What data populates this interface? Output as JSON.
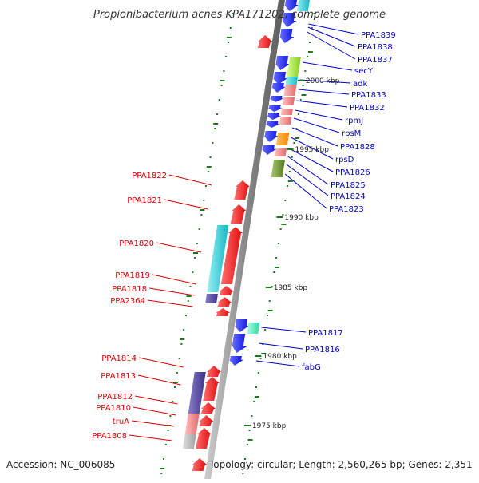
{
  "title": "Propionibacterium acnes KPA171202, complete genome",
  "footer": {
    "accession": "Accession: NC_006085",
    "topology": "Topology: circular; Length: 2,560,265 bp; Genes: 2,351"
  },
  "colors": {
    "forward_label": "#0000cc",
    "reverse_label": "#dd0000",
    "forward_gene": "#0a12e8",
    "reverse_gene": "#ee0f0f",
    "backbone": "#9a9a9a",
    "tick": "#1a7a1a"
  },
  "scale_labels": [
    "2000 kbp",
    "1995 kbp",
    "1990 kbp",
    "1985 kbp",
    "1980 kbp",
    "1975 kbp"
  ],
  "forward_genes": [
    "PPA1839",
    "PPA1838",
    "PPA1837",
    "secY",
    "adk",
    "PPA1833",
    "PPA1832",
    "rpmJ",
    "rpsM",
    "PPA1828",
    "rpsD",
    "PPA1826",
    "PPA1825",
    "PPA1824",
    "PPA1823",
    "PPA1817",
    "PPA1816",
    "fabG"
  ],
  "reverse_genes": [
    "PPA1822",
    "PPA1821",
    "PPA1820",
    "PPA1819",
    "PPA1818",
    "PPA2364",
    "PPA1814",
    "PPA1813",
    "PPA1812",
    "PPA1810",
    "truA",
    "PPA1808"
  ]
}
